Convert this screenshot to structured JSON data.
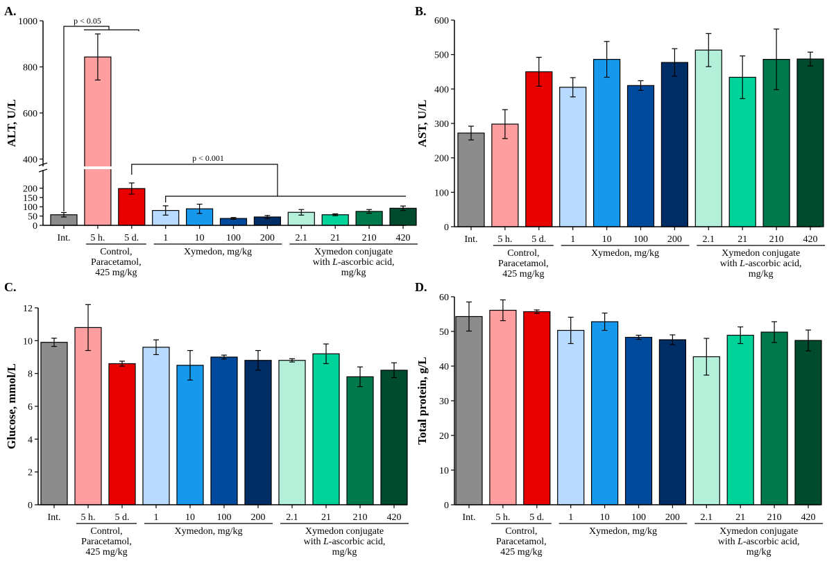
{
  "figure": {
    "categories": [
      "Int.",
      "5 h.",
      "5 d.",
      "1",
      "10",
      "100",
      "200",
      "2.1",
      "21",
      "210",
      "420"
    ],
    "colors": [
      "#8c8c8c",
      "#ff9e9e",
      "#e80000",
      "#b9daff",
      "#1699ec",
      "#004a9e",
      "#002d66",
      "#b4efd9",
      "#00d39a",
      "#007a4c",
      "#004b2e"
    ],
    "groups": [
      {
        "lines": [
          "Control,",
          "Paracetamol,",
          "425 mg/kg"
        ],
        "from": 1,
        "to": 2
      },
      {
        "lines": [
          "Xymedon, mg/kg"
        ],
        "from": 3,
        "to": 6
      },
      {
        "lines": [
          "Xymedon conjugate",
          "with L-ascorbic acid,",
          "mg/kg"
        ],
        "from": 7,
        "to": 10
      }
    ]
  },
  "chart_data": [
    {
      "panel_label": "A.",
      "type": "bar",
      "ylabel": "ALT, U/L",
      "axis_break": {
        "lower_max": 250,
        "upper_min": 350
      },
      "ylim": [
        0,
        1000
      ],
      "yticks": [
        0,
        50,
        100,
        150,
        200,
        400,
        600,
        800,
        1000
      ],
      "values": [
        57,
        843,
        198,
        80,
        89,
        37,
        45,
        70,
        57,
        75,
        92
      ],
      "errors": [
        12,
        100,
        30,
        25,
        25,
        5,
        8,
        15,
        5,
        10,
        12
      ],
      "significance": [
        {
          "text": "p < 0.05",
          "from": 0,
          "to": 1
        },
        {
          "text": "p < 0.001",
          "from": 2,
          "to_group": [
            3,
            10
          ]
        }
      ]
    },
    {
      "panel_label": "B.",
      "type": "bar",
      "ylabel": "AST, U/L",
      "ylim": [
        0,
        600
      ],
      "yticks": [
        0,
        100,
        200,
        300,
        400,
        500,
        600
      ],
      "values": [
        272,
        298,
        450,
        405,
        486,
        410,
        477,
        513,
        434,
        486,
        487
      ],
      "errors": [
        20,
        42,
        42,
        28,
        52,
        14,
        40,
        48,
        62,
        88,
        20
      ]
    },
    {
      "panel_label": "C.",
      "type": "bar",
      "ylabel": "Glucose, mmol/L",
      "ylim": [
        0,
        12
      ],
      "yticks": [
        0,
        2,
        4,
        6,
        8,
        10,
        12
      ],
      "values": [
        9.9,
        10.8,
        8.6,
        9.6,
        8.5,
        9.0,
        8.8,
        8.8,
        9.2,
        7.8,
        8.2
      ],
      "errors": [
        0.25,
        1.4,
        0.15,
        0.45,
        0.9,
        0.12,
        0.6,
        0.1,
        0.6,
        0.6,
        0.45
      ]
    },
    {
      "panel_label": "D.",
      "type": "bar",
      "ylabel": "Total protein, g/L",
      "ylim": [
        0,
        60
      ],
      "yticks": [
        0,
        10,
        20,
        30,
        40,
        50,
        60
      ],
      "values": [
        54.3,
        56.1,
        55.7,
        50.3,
        52.8,
        48.3,
        47.6,
        42.7,
        48.9,
        49.8,
        47.4
      ],
      "errors": [
        4.2,
        3.0,
        0.5,
        3.8,
        2.5,
        0.6,
        1.4,
        5.3,
        2.4,
        3.0,
        3.0
      ]
    }
  ]
}
